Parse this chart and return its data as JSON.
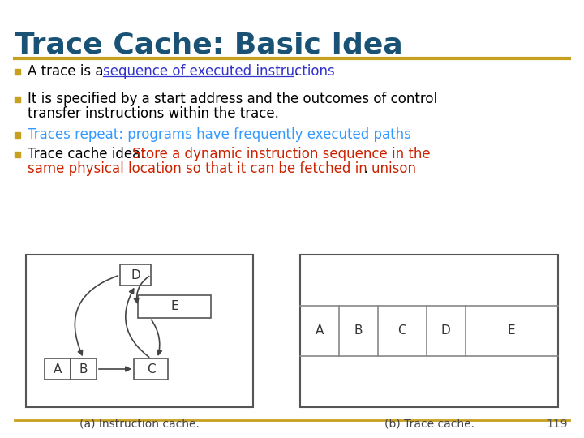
{
  "title": "Trace Cache: Basic Idea",
  "title_color": "#1a5276",
  "title_fontsize": 26,
  "divider_color": "#c8a020",
  "bullet_color": "#c8a020",
  "caption_a": "(a) Instruction cache.",
  "caption_b": "(b) Trace cache.",
  "page_number": "119",
  "bg_color": "#ffffff"
}
